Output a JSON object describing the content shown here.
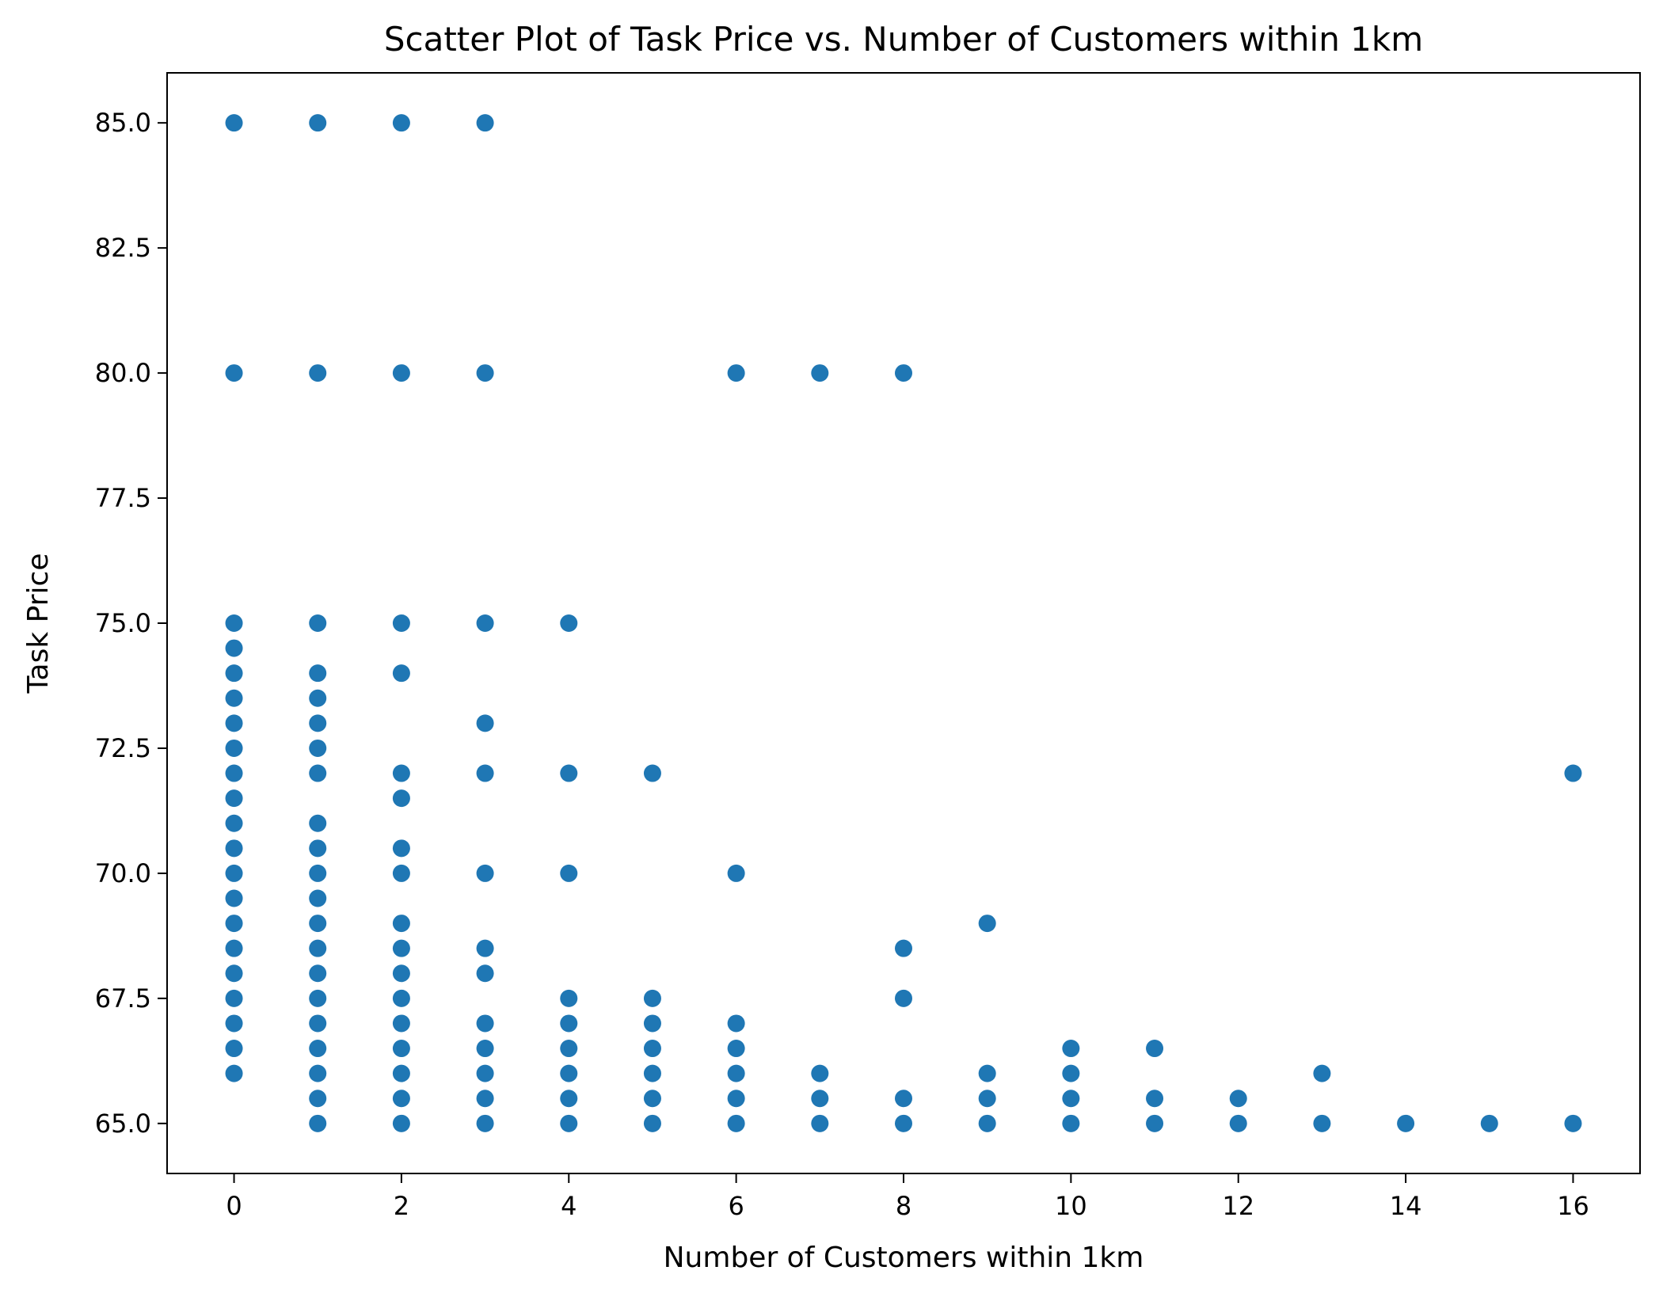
{
  "chart_data": {
    "type": "scatter",
    "title": "Scatter Plot of Task Price vs. Number of Customers within 1km",
    "xlabel": "Number of Customers within 1km",
    "ylabel": "Task Price",
    "xlim": [
      -0.8,
      16.8
    ],
    "ylim": [
      64.0,
      86.0
    ],
    "xticks": [
      0,
      2,
      4,
      6,
      8,
      10,
      12,
      14,
      16
    ],
    "yticks": [
      65.0,
      67.5,
      70.0,
      72.5,
      75.0,
      77.5,
      80.0,
      82.5,
      85.0
    ],
    "grid": false,
    "marker_color": "#1f77b4",
    "points": [
      [
        0,
        85
      ],
      [
        1,
        85
      ],
      [
        2,
        85
      ],
      [
        3,
        85
      ],
      [
        0,
        80
      ],
      [
        1,
        80
      ],
      [
        2,
        80
      ],
      [
        3,
        80
      ],
      [
        6,
        80
      ],
      [
        7,
        80
      ],
      [
        8,
        80
      ],
      [
        0,
        75
      ],
      [
        0,
        74.5
      ],
      [
        0,
        74
      ],
      [
        0,
        73.5
      ],
      [
        0,
        73
      ],
      [
        0,
        72.5
      ],
      [
        0,
        72
      ],
      [
        0,
        71.5
      ],
      [
        0,
        71
      ],
      [
        0,
        70.5
      ],
      [
        0,
        70
      ],
      [
        0,
        69.5
      ],
      [
        0,
        69
      ],
      [
        0,
        68.5
      ],
      [
        0,
        68
      ],
      [
        0,
        67.5
      ],
      [
        0,
        67
      ],
      [
        0,
        66.5
      ],
      [
        0,
        66
      ],
      [
        1,
        75
      ],
      [
        1,
        74
      ],
      [
        1,
        73.5
      ],
      [
        1,
        73
      ],
      [
        1,
        72.5
      ],
      [
        1,
        72
      ],
      [
        1,
        71
      ],
      [
        1,
        70.5
      ],
      [
        1,
        70
      ],
      [
        1,
        69.5
      ],
      [
        1,
        69
      ],
      [
        1,
        68.5
      ],
      [
        1,
        68
      ],
      [
        1,
        67.5
      ],
      [
        1,
        67
      ],
      [
        1,
        66.5
      ],
      [
        1,
        66
      ],
      [
        1,
        65.5
      ],
      [
        1,
        65
      ],
      [
        2,
        75
      ],
      [
        2,
        74
      ],
      [
        2,
        72
      ],
      [
        2,
        71.5
      ],
      [
        2,
        70.5
      ],
      [
        2,
        70
      ],
      [
        2,
        69
      ],
      [
        2,
        68.5
      ],
      [
        2,
        68
      ],
      [
        2,
        67.5
      ],
      [
        2,
        67
      ],
      [
        2,
        66.5
      ],
      [
        2,
        66
      ],
      [
        2,
        65.5
      ],
      [
        2,
        65
      ],
      [
        3,
        75
      ],
      [
        3,
        73
      ],
      [
        3,
        72
      ],
      [
        3,
        70
      ],
      [
        3,
        68.5
      ],
      [
        3,
        68
      ],
      [
        3,
        67
      ],
      [
        3,
        66.5
      ],
      [
        3,
        66
      ],
      [
        3,
        65.5
      ],
      [
        3,
        65
      ],
      [
        4,
        75
      ],
      [
        4,
        72
      ],
      [
        4,
        70
      ],
      [
        4,
        67.5
      ],
      [
        4,
        67
      ],
      [
        4,
        66.5
      ],
      [
        4,
        66
      ],
      [
        4,
        65.5
      ],
      [
        4,
        65
      ],
      [
        5,
        72
      ],
      [
        5,
        67.5
      ],
      [
        5,
        67
      ],
      [
        5,
        66.5
      ],
      [
        5,
        66
      ],
      [
        5,
        65.5
      ],
      [
        5,
        65
      ],
      [
        6,
        70
      ],
      [
        6,
        67
      ],
      [
        6,
        66.5
      ],
      [
        6,
        66
      ],
      [
        6,
        65.5
      ],
      [
        6,
        65
      ],
      [
        7,
        66
      ],
      [
        7,
        65.5
      ],
      [
        7,
        65
      ],
      [
        8,
        68.5
      ],
      [
        8,
        67.5
      ],
      [
        8,
        65.5
      ],
      [
        8,
        65
      ],
      [
        9,
        69
      ],
      [
        9,
        66
      ],
      [
        9,
        65.5
      ],
      [
        9,
        65
      ],
      [
        10,
        66.5
      ],
      [
        10,
        66
      ],
      [
        10,
        65.5
      ],
      [
        10,
        65
      ],
      [
        11,
        66.5
      ],
      [
        11,
        65.5
      ],
      [
        11,
        65
      ],
      [
        12,
        65.5
      ],
      [
        12,
        65
      ],
      [
        13,
        66
      ],
      [
        13,
        65
      ],
      [
        14,
        65
      ],
      [
        15,
        65
      ],
      [
        16,
        72
      ],
      [
        16,
        65
      ]
    ]
  }
}
